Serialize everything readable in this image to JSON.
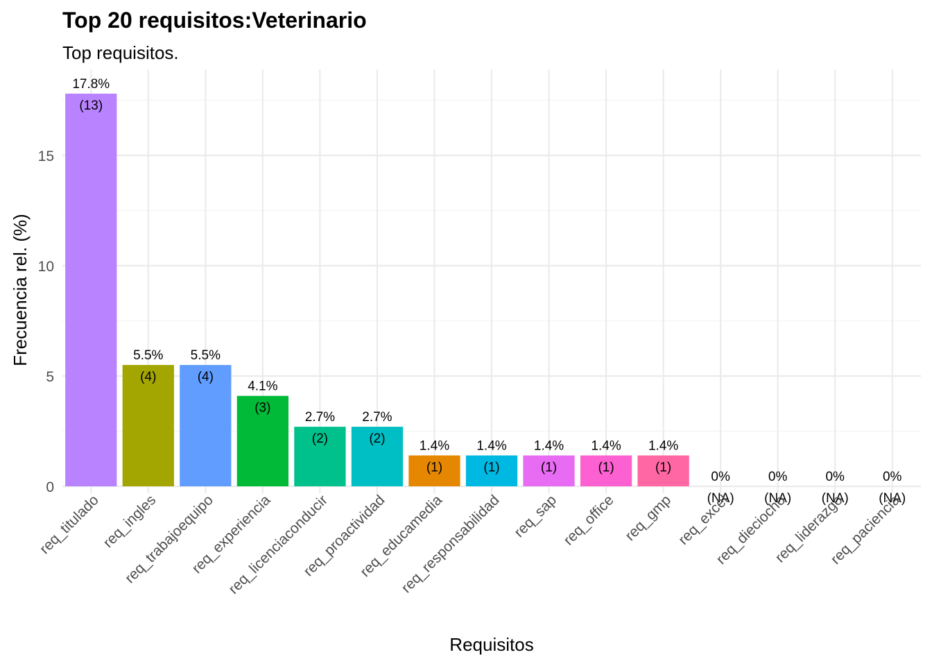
{
  "chart_data": {
    "type": "bar",
    "title": "Top 20 requisitos:Veterinario",
    "subtitle": "Top requisitos.",
    "xlabel": "Requisitos",
    "ylabel": "Frecuencia rel. (%)",
    "ylim": [
      0,
      18
    ],
    "yticks": [
      0,
      5,
      10,
      15
    ],
    "grid": true,
    "categories": [
      "req_titulado",
      "req_ingles",
      "req_trabajoequipo",
      "req_experiencia",
      "req_licenciaconducir",
      "req_proactividad",
      "req_educamedia",
      "req_responsabilidad",
      "req_sap",
      "req_office",
      "req_gmp",
      "req_excel",
      "req_dieciocho",
      "req_liderazgo",
      "req_paciencia"
    ],
    "values": [
      17.8,
      5.5,
      5.5,
      4.1,
      2.7,
      2.7,
      1.4,
      1.4,
      1.4,
      1.4,
      1.4,
      0,
      0,
      0,
      0
    ],
    "pct_labels": [
      "17.8%",
      "5.5%",
      "5.5%",
      "4.1%",
      "2.7%",
      "2.7%",
      "1.4%",
      "1.4%",
      "1.4%",
      "1.4%",
      "1.4%",
      "0%",
      "0%",
      "0%",
      "0%"
    ],
    "count_labels": [
      "(13)",
      "(4)",
      "(4)",
      "(3)",
      "(2)",
      "(2)",
      "(1)",
      "(1)",
      "(1)",
      "(1)",
      "(1)",
      "(NA)",
      "(NA)",
      "(NA)",
      "(NA)"
    ],
    "colors": [
      "#B983FF",
      "#A3A500",
      "#619CFF",
      "#00BA38",
      "#00C08B",
      "#00BFC4",
      "#E58700",
      "#00B9E3",
      "#E76BF3",
      "#FD61D1",
      "#FF67A4",
      "#C99800",
      "#6BB100",
      "#00A5FF",
      "#F8766D"
    ]
  }
}
